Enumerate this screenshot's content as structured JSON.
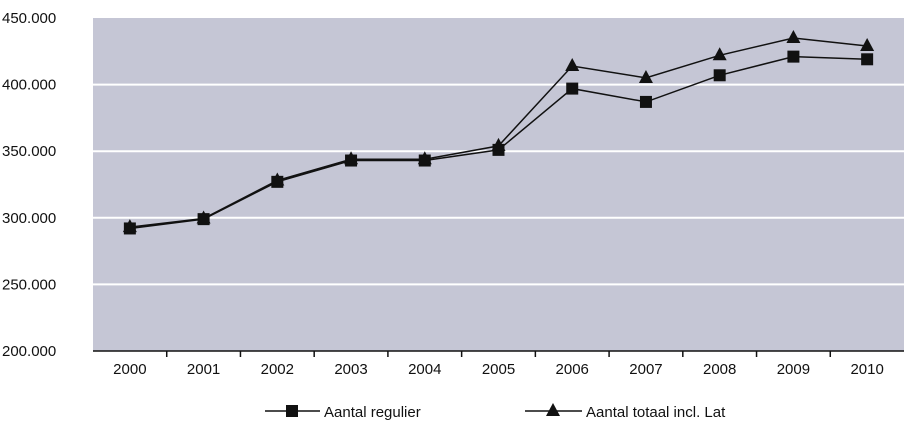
{
  "chart_data": {
    "type": "line",
    "categories": [
      "2000",
      "2001",
      "2002",
      "2003",
      "2004",
      "2005",
      "2006",
      "2007",
      "2008",
      "2009",
      "2010"
    ],
    "series": [
      {
        "name": "Aantal regulier",
        "marker": "square",
        "values": [
          292000,
          299000,
          327000,
          343000,
          343000,
          351000,
          397000,
          387000,
          407000,
          421000,
          419000
        ]
      },
      {
        "name": "Aantal totaal incl. Lat",
        "marker": "triangle",
        "values": [
          293000,
          299500,
          328000,
          344000,
          344000,
          354000,
          414000,
          405000,
          422000,
          435000,
          429000
        ]
      }
    ],
    "ylim": [
      200000,
      450000
    ],
    "yticks": [
      200000,
      250000,
      300000,
      350000,
      400000,
      450000
    ],
    "ytick_labels": [
      "200.000",
      "250.000",
      "300.000",
      "350.000",
      "400.000",
      "450.000"
    ],
    "grid": true,
    "legend_position": "bottom",
    "colors": {
      "plot_background": "#c5c6d5",
      "gridline": "#ffffff",
      "line": "#111111"
    }
  }
}
